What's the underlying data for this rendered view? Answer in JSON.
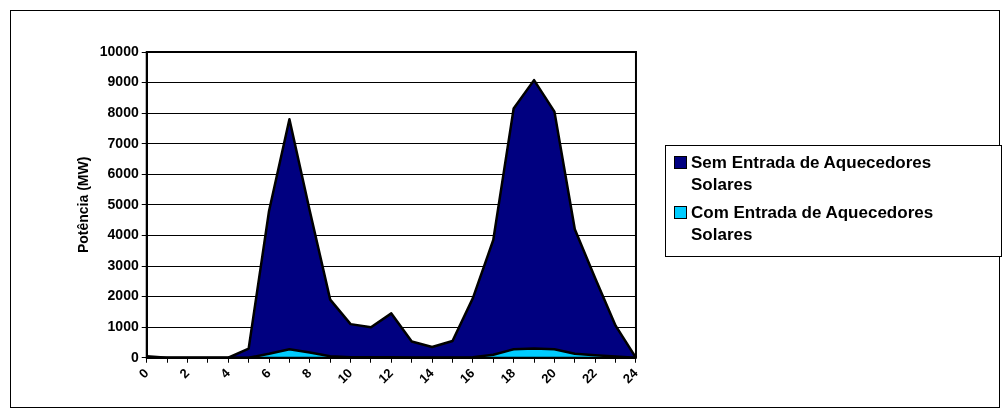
{
  "chart_data": {
    "type": "area",
    "ylabel": "Potência (MW)",
    "x": [
      0,
      1,
      2,
      3,
      4,
      5,
      6,
      7,
      8,
      9,
      10,
      11,
      12,
      13,
      14,
      15,
      16,
      17,
      18,
      19,
      20,
      21,
      22,
      23,
      24
    ],
    "series": [
      {
        "name": "Sem Entrada de Aquecedores Solares",
        "color": "#000080",
        "values": [
          50,
          0,
          0,
          0,
          0,
          300,
          4800,
          7800,
          4800,
          1900,
          1100,
          1000,
          1450,
          530,
          350,
          550,
          1950,
          3850,
          8150,
          9080,
          8050,
          4200,
          2600,
          1050,
          0
        ]
      },
      {
        "name": "Com Entrada de Aquecedores Solares",
        "color": "#00ccff",
        "values": [
          0,
          0,
          0,
          0,
          0,
          0,
          130,
          280,
          170,
          50,
          20,
          20,
          20,
          10,
          10,
          10,
          20,
          100,
          280,
          300,
          280,
          130,
          80,
          40,
          0
        ]
      }
    ],
    "xlim": [
      0,
      24
    ],
    "xticks": [
      0,
      {
        "value": 1,
        "label": null
      },
      2,
      {
        "value": 3,
        "label": null
      },
      4,
      {
        "value": 5,
        "label": null
      },
      6,
      {
        "value": 7,
        "label": null
      },
      8,
      {
        "value": 9,
        "label": null
      },
      10,
      {
        "value": 11,
        "label": null
      },
      12,
      {
        "value": 13,
        "label": null
      },
      14,
      {
        "value": 15,
        "label": null
      },
      16,
      {
        "value": 17,
        "label": null
      },
      18,
      {
        "value": 19,
        "label": null
      },
      20,
      {
        "value": 21,
        "label": null
      },
      22,
      {
        "value": 23,
        "label": null
      },
      24
    ],
    "ylim": [
      0,
      10000
    ],
    "yticks": [
      0,
      1000,
      2000,
      3000,
      4000,
      5000,
      6000,
      7000,
      8000,
      9000,
      10000
    ],
    "grid": "y",
    "legend": "right",
    "marker": "none"
  }
}
